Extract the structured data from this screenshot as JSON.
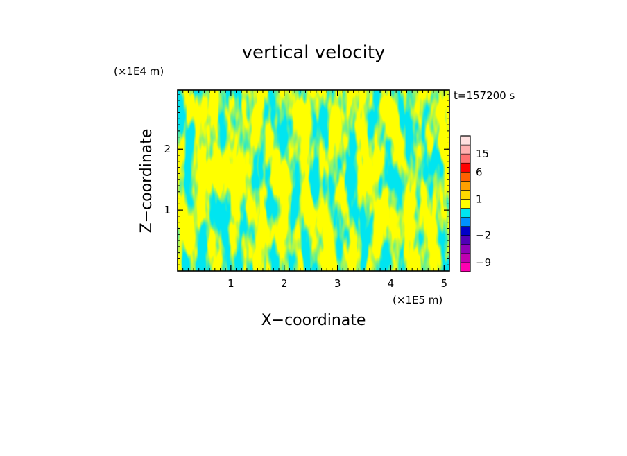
{
  "chart_data": {
    "type": "heatmap",
    "title": "vertical velocity",
    "xlabel": "X−coordinate",
    "ylabel": "Z−coordinate",
    "x_unit": "(×1E5 m)",
    "y_unit": "(×1E4 m)",
    "time_label": "t=157200 s",
    "xlim": [
      0.0,
      5.1
    ],
    "ylim": [
      0.0,
      2.97
    ],
    "x_ticks": [
      1,
      2,
      3,
      4,
      5
    ],
    "x_tick_labels": [
      "1",
      "2",
      "3",
      "4",
      "5"
    ],
    "y_ticks": [
      1,
      2
    ],
    "y_tick_labels": [
      "1",
      "2"
    ],
    "colors": {
      "positive": "#ffff00",
      "negative": "#00e5f0"
    },
    "colorbar": {
      "levels": [
        -12,
        -9,
        -6,
        -4,
        -2,
        -1,
        -0.5,
        0.5,
        1,
        2,
        4,
        6,
        10,
        15,
        20,
        25
      ],
      "colors": [
        "#ff00b0",
        "#c000b0",
        "#9000b8",
        "#5000b8",
        "#0000c8",
        "#0090ff",
        "#00e5f0",
        "#ffff00",
        "#ffd800",
        "#ffa000",
        "#ff6000",
        "#ff0000",
        "#ff7070",
        "#ffb0b0",
        "#ffe0e0"
      ],
      "tick_labels": [
        {
          "value": 15,
          "label": "15"
        },
        {
          "value": 6,
          "label": "6"
        },
        {
          "value": 1,
          "label": "1"
        },
        {
          "value": -2,
          "label": "−2"
        },
        {
          "value": -9,
          "label": "−9"
        }
      ]
    }
  }
}
